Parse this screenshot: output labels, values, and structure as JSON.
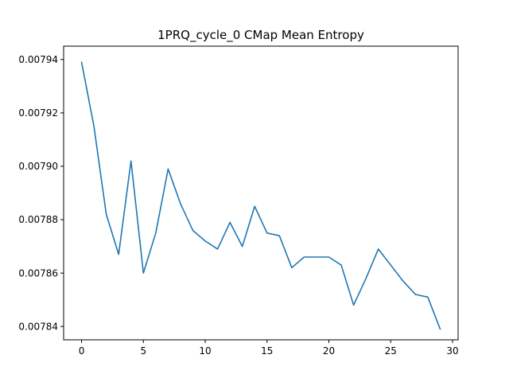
{
  "chart_data": {
    "type": "line",
    "title": "1PRQ_cycle_0 CMap Mean Entropy",
    "xlabel": "",
    "ylabel": "",
    "xlim": [
      -1.45,
      30.45
    ],
    "ylim": [
      0.007835,
      0.007945
    ],
    "x_ticks": [
      0,
      5,
      10,
      15,
      20,
      25,
      30
    ],
    "y_ticks": [
      0.00784,
      0.00786,
      0.00788,
      0.0079,
      0.00792,
      0.00794
    ],
    "y_tick_labels": [
      "0.00784",
      "0.00786",
      "0.00788",
      "0.00790",
      "0.00792",
      "0.00794"
    ],
    "grid": false,
    "series": [
      {
        "color": "#1f77b4",
        "x": [
          0,
          1,
          2,
          3,
          4,
          5,
          6,
          7,
          8,
          9,
          10,
          11,
          12,
          13,
          14,
          15,
          16,
          17,
          18,
          19,
          20,
          21,
          22,
          23,
          24,
          25,
          26,
          27,
          28,
          29
        ],
        "values": [
          0.007939,
          0.007915,
          0.007882,
          0.007867,
          0.007902,
          0.00786,
          0.007875,
          0.007899,
          0.007886,
          0.007876,
          0.007872,
          0.007869,
          0.007879,
          0.00787,
          0.007885,
          0.007875,
          0.007874,
          0.007862,
          0.007866,
          0.007866,
          0.007866,
          0.007863,
          0.007848,
          0.007858,
          0.007869,
          0.007863,
          0.007857,
          0.007852,
          0.007851,
          0.007839
        ]
      }
    ]
  }
}
